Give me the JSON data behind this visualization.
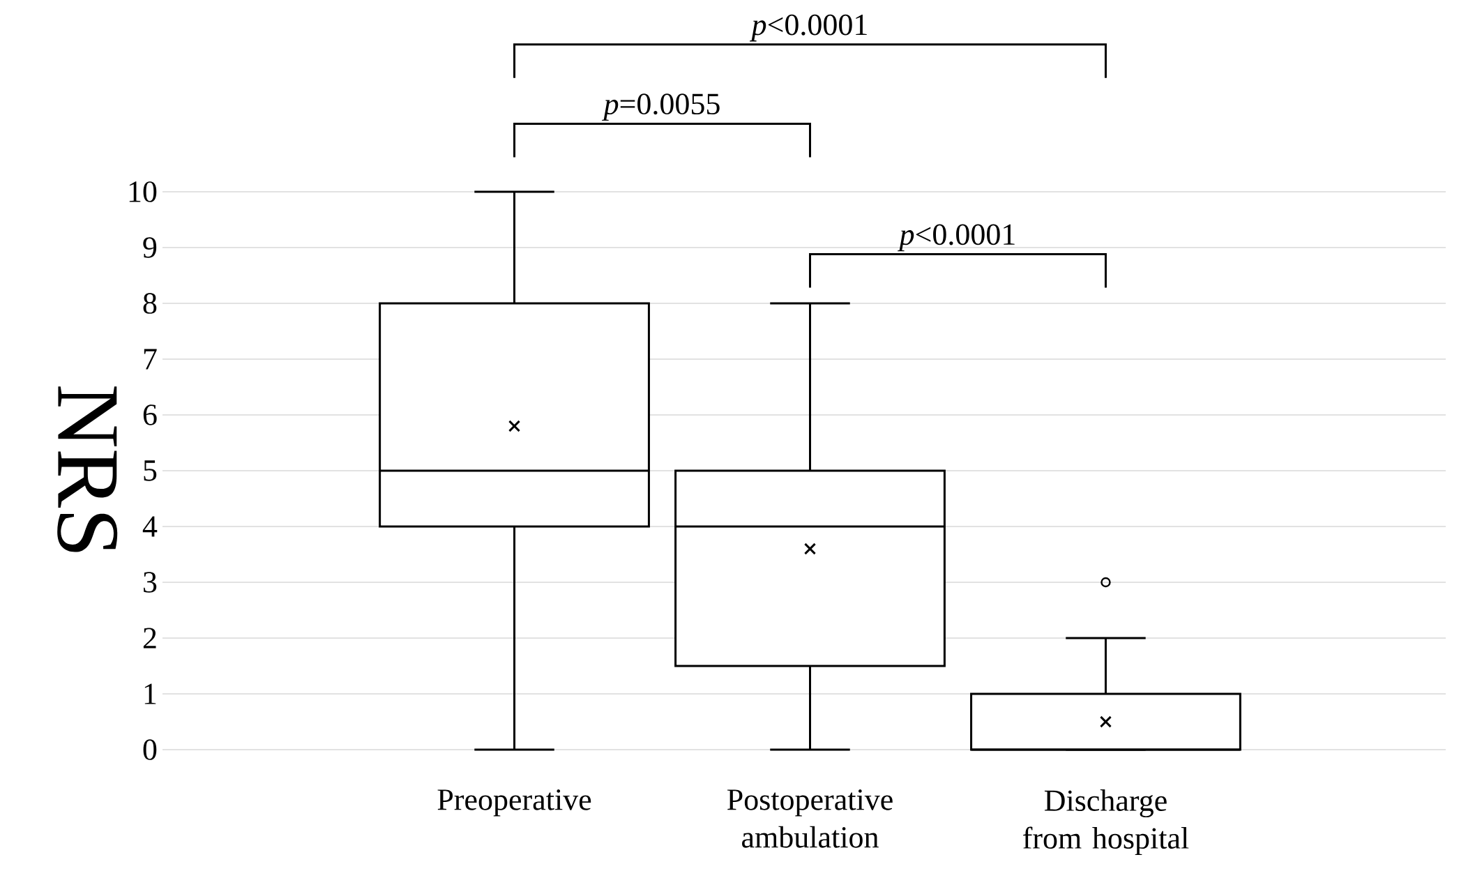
{
  "chart_data": {
    "type": "box",
    "ylabel": "NRS",
    "categories": [
      "Preoperative",
      "Postoperative ambulation",
      "Discharge from hospital"
    ],
    "boxes": [
      {
        "low": 0,
        "q1": 4,
        "median": 5,
        "q3": 8,
        "high": 10,
        "mean": 5.8
      },
      {
        "low": 0,
        "q1": 1.5,
        "median": 4,
        "q3": 5,
        "high": 8,
        "mean": 3.6
      },
      {
        "low": 0,
        "q1": 0,
        "median": 0,
        "q3": 1,
        "high": 2,
        "mean": 0.5,
        "outliers": [
          3
        ]
      }
    ],
    "ylim": [
      0,
      10
    ],
    "yticks": [
      0,
      1,
      2,
      3,
      4,
      5,
      6,
      7,
      8,
      9,
      10
    ],
    "grid": "y",
    "annotations": [
      "*p*<0.0001",
      "*p*=0.0055",
      "*p*<0.0001"
    ]
  }
}
